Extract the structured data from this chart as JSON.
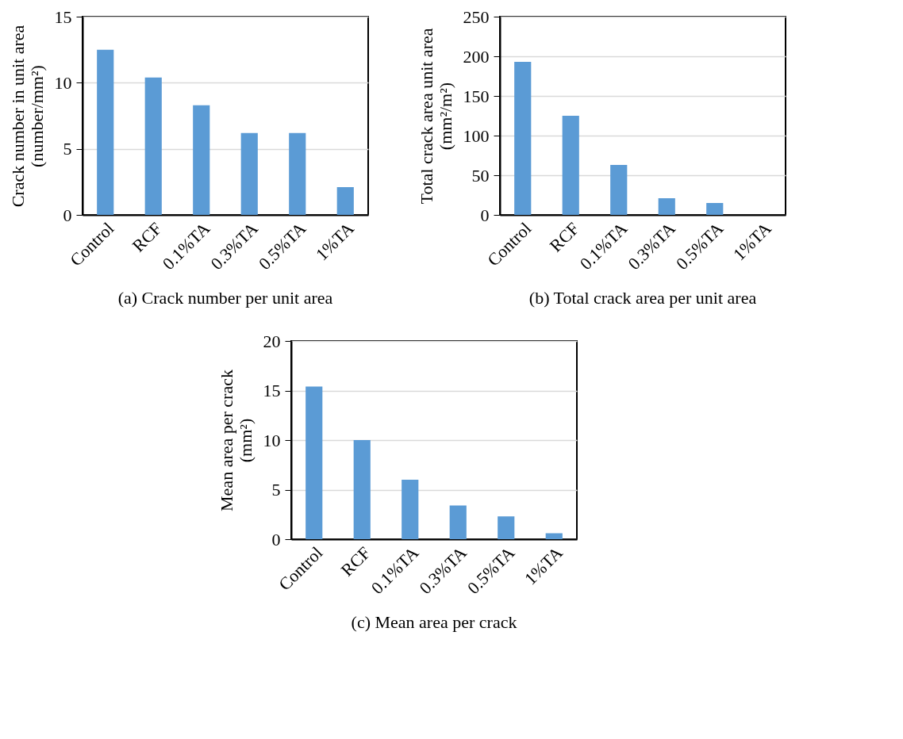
{
  "chart_data": [
    {
      "type": "bar",
      "title": "(a)  Crack number per unit area",
      "ylabel": "Crack number  in unit area (number/mm²)",
      "categories": [
        "Control",
        "RCF",
        "0.1%TA",
        "0.3%TA",
        "0.5%TA",
        "1%TA"
      ],
      "values": [
        12.5,
        10.4,
        8.3,
        6.2,
        6.2,
        2.1
      ],
      "color": "#5b9bd5",
      "ylim": [
        0,
        15
      ],
      "yticks": [
        0,
        5,
        10,
        15
      ],
      "grid": "y"
    },
    {
      "type": "bar",
      "title": "(b)    Total crack area per unit area",
      "ylabel": "Total crack area unit area (mm²/m²)",
      "categories": [
        "Control",
        "RCF",
        "0.1%TA",
        "0.3%TA",
        "0.5%TA",
        "1%TA"
      ],
      "values": [
        193,
        125,
        63,
        21,
        15,
        0
      ],
      "color": "#5b9bd5",
      "ylim": [
        0,
        250
      ],
      "yticks": [
        0,
        50,
        100,
        150,
        200,
        250
      ],
      "grid": "y"
    },
    {
      "type": "bar",
      "title": "(c)  Mean area per crack",
      "ylabel": "Mean area per crack (mm²)",
      "categories": [
        "Control",
        "RCF",
        "0.1%TA",
        "0.3%TA",
        "0.5%TA",
        "1%TA"
      ],
      "values": [
        15.4,
        10.0,
        6.0,
        3.4,
        2.3,
        0.6
      ],
      "color": "#5b9bd5",
      "ylim": [
        0,
        20
      ],
      "yticks": [
        0,
        5,
        10,
        15,
        20
      ],
      "grid": "y"
    }
  ]
}
